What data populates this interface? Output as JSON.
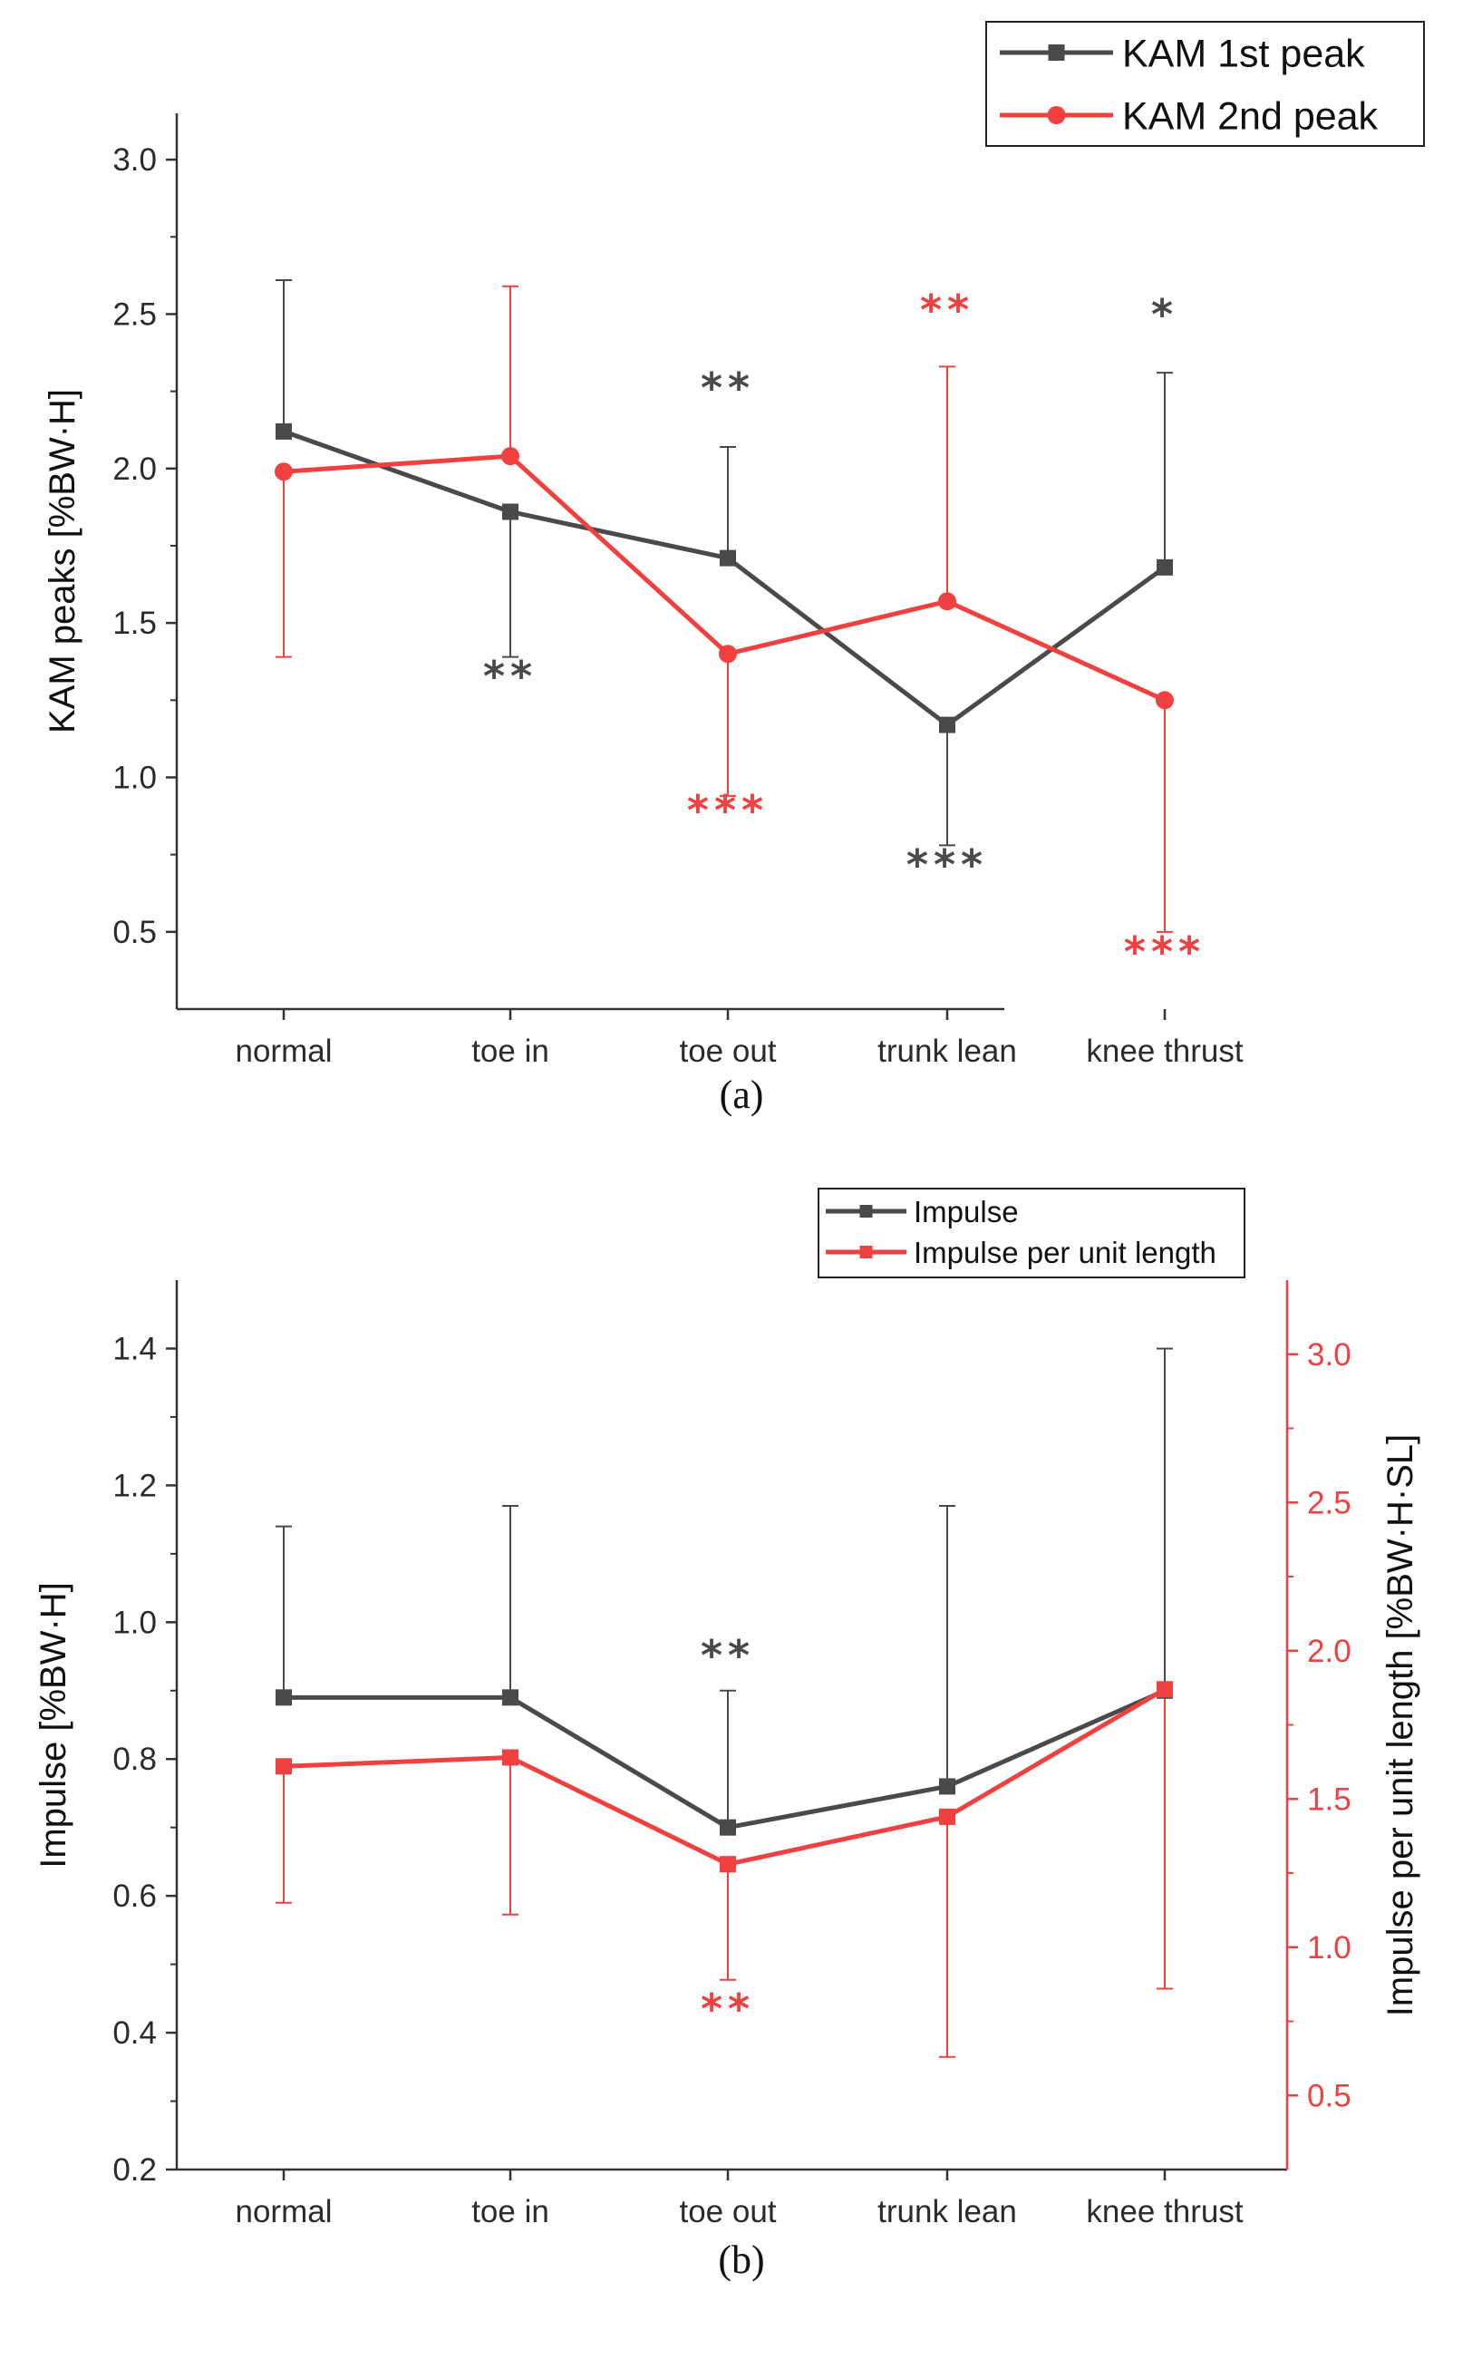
{
  "colors": {
    "black_series": "#4a4a4a",
    "red_series": "#f04040",
    "axis": "#333333",
    "text": "#222222"
  },
  "chart_data": [
    {
      "type": "line",
      "caption": "(a)",
      "categories": [
        "normal",
        "toe in",
        "toe out",
        "trunk lean",
        "knee thrust"
      ],
      "ylabel": "KAM peaks [%BW·H]",
      "ylim": [
        0.25,
        3.15
      ],
      "yticks": [
        "0.5",
        "1.0",
        "1.5",
        "2.0",
        "2.5",
        "3.0"
      ],
      "legend": "top-right",
      "grid": false,
      "series": [
        {
          "name": "KAM 1st peak",
          "marker": "square",
          "color": "#4a4a4a",
          "axis": "left",
          "values": [
            2.12,
            1.86,
            1.71,
            1.17,
            1.68
          ],
          "error_upper": [
            2.61,
            null,
            2.07,
            null,
            2.31
          ],
          "error_lower": [
            null,
            1.39,
            null,
            0.78,
            null
          ],
          "annotations": [
            "",
            "**",
            "**",
            "***",
            "*"
          ]
        },
        {
          "name": "KAM 2nd peak",
          "marker": "circle",
          "color": "#f04040",
          "axis": "left",
          "values": [
            1.99,
            2.04,
            1.4,
            1.57,
            1.25
          ],
          "error_upper": [
            null,
            2.59,
            null,
            2.33,
            null
          ],
          "error_lower": [
            1.39,
            null,
            0.94,
            null,
            0.5
          ],
          "annotations": [
            "",
            "",
            "***",
            "**",
            "***"
          ]
        }
      ]
    },
    {
      "type": "line",
      "caption": "(b)",
      "categories": [
        "normal",
        "toe in",
        "toe out",
        "trunk lean",
        "knee thrust"
      ],
      "ylabel": "Impulse [%BW·H]",
      "ylabel_right": "Impulse per unit length [%BW·H·SL]",
      "ylim": [
        0.2,
        1.5
      ],
      "ylim_right": [
        0.25,
        3.25
      ],
      "yticks": [
        "0.2",
        "0.4",
        "0.6",
        "0.8",
        "1.0",
        "1.2",
        "1.4"
      ],
      "yticks_right": [
        "0.5",
        "1.0",
        "1.5",
        "2.0",
        "2.5",
        "3.0"
      ],
      "legend": "top-right",
      "grid": false,
      "series": [
        {
          "name": "Impulse",
          "marker": "square",
          "color": "#4a4a4a",
          "axis": "left",
          "values": [
            0.89,
            0.89,
            0.7,
            0.76,
            0.9
          ],
          "error_upper": [
            1.14,
            1.17,
            0.9,
            1.17,
            1.4
          ],
          "error_lower": [
            null,
            null,
            null,
            null,
            null
          ],
          "annotations": [
            "",
            "",
            "**",
            "",
            ""
          ]
        },
        {
          "name": "Impulse per unit length",
          "marker": "square",
          "color": "#f04040",
          "axis": "right",
          "values": [
            1.61,
            1.64,
            1.28,
            1.44,
            1.87
          ],
          "error_upper": [
            null,
            null,
            null,
            null,
            null
          ],
          "error_lower": [
            1.15,
            1.11,
            0.89,
            0.63,
            0.86
          ],
          "annotations": [
            "",
            "",
            "**",
            "",
            ""
          ]
        }
      ]
    }
  ]
}
